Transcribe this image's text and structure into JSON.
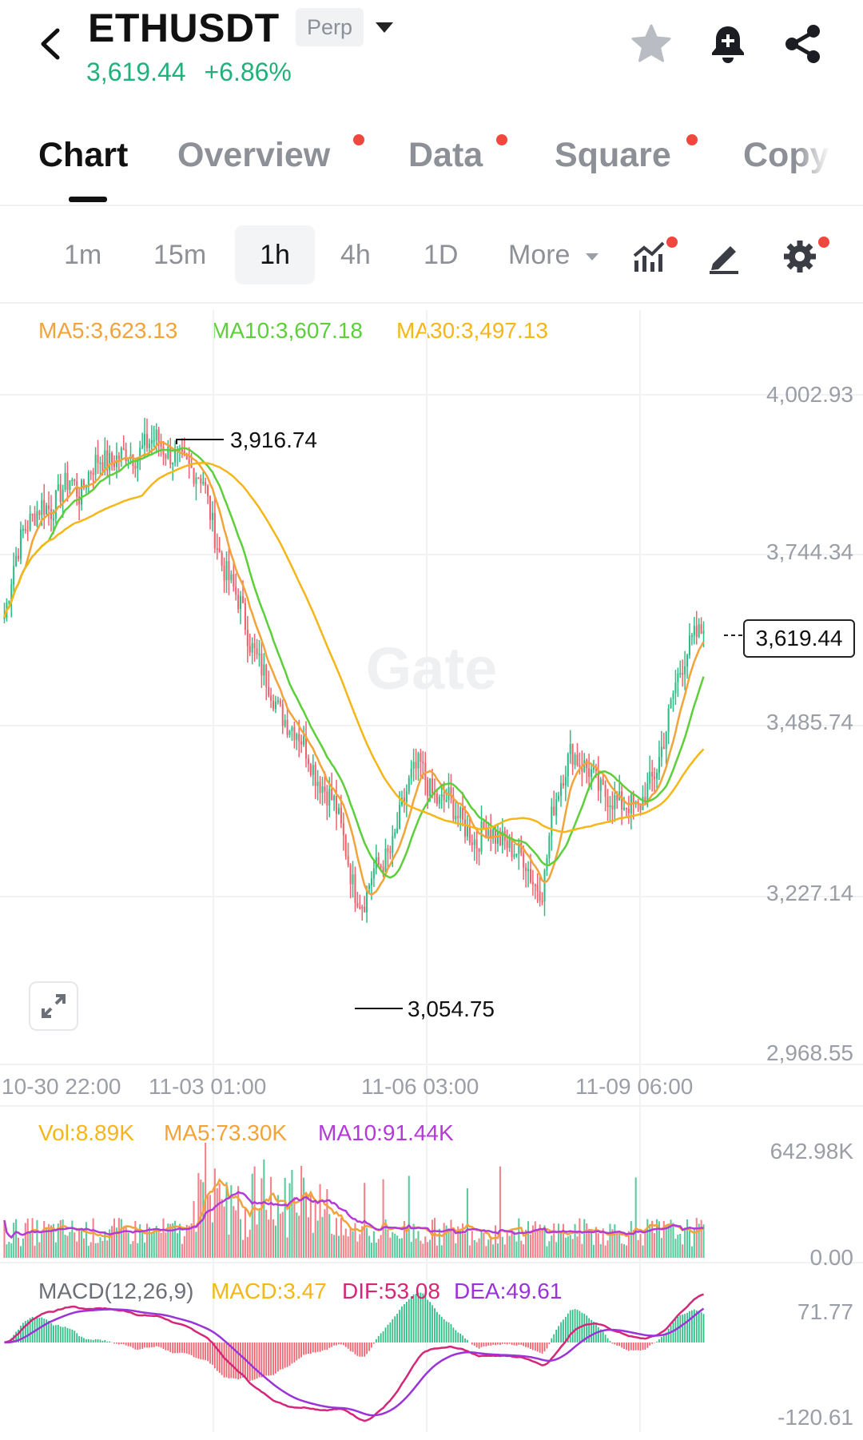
{
  "header": {
    "symbol": "ETHUSDT",
    "badge": "Perp",
    "last_price": "3,619.44",
    "change": "+6.86%",
    "icons": [
      "back-arrow-icon",
      "star-icon",
      "bell-plus-icon",
      "share-icon"
    ]
  },
  "tabs": [
    {
      "label": "Chart",
      "active": true,
      "dot": false
    },
    {
      "label": "Overview",
      "active": false,
      "dot": true
    },
    {
      "label": "Data",
      "active": false,
      "dot": true
    },
    {
      "label": "Square",
      "active": false,
      "dot": true
    },
    {
      "label": "Copy",
      "active": false,
      "dot": false
    }
  ],
  "intervals": {
    "items": [
      "1m",
      "15m",
      "1h",
      "4h",
      "1D"
    ],
    "selected": "1h",
    "more_label": "More"
  },
  "indicators": {
    "ma5": "MA5:3,623.13",
    "ma10": "MA10:3,607.18",
    "ma30": "MA30:3,497.13"
  },
  "price_axis": [
    "4,002.93",
    "3,744.34",
    "3,485.74",
    "3,227.14",
    "2,968.55"
  ],
  "time_axis": [
    "10-30 22:00",
    "11-03 01:00",
    "11-06 03:00",
    "11-09 06:00"
  ],
  "annotations": {
    "high": "3,916.74",
    "low": "3,054.75",
    "last": "3,619.44"
  },
  "watermark": "Gate",
  "volume": {
    "vol": "Vol:8.89K",
    "ma5": "MA5:73.30K",
    "ma10": "MA10:91.44K",
    "axis_top": "642.98K",
    "axis_bottom": "0.00"
  },
  "macd": {
    "name": "MACD(12,26,9)",
    "macd": "MACD:3.47",
    "dif": "DIF:53.08",
    "dea": "DEA:49.61",
    "axis_top": "71.77",
    "axis_bottom": "-120.61"
  },
  "colors": {
    "up": "#2ebd85",
    "down": "#f0616d",
    "ma5": "#f2a33a",
    "ma10": "#5ccf3a",
    "ma30": "#f5b617",
    "vol_ma10": "#b23bd8",
    "dif": "#d6267a",
    "dea": "#9a33d8",
    "price_up": "#22b07d"
  },
  "chart_data": {
    "type": "candlestick",
    "interval": "1h",
    "y_range": [
      2968.55,
      4002.93
    ],
    "closes": [
      3640,
      3720,
      3770,
      3790,
      3810,
      3800,
      3830,
      3850,
      3820,
      3860,
      3880,
      3870,
      3880,
      3890,
      3880,
      3900,
      3910,
      3890,
      3880,
      3870,
      3860,
      3850,
      3780,
      3720,
      3690,
      3660,
      3600,
      3570,
      3540,
      3500,
      3480,
      3470,
      3440,
      3400,
      3380,
      3360,
      3300,
      3230,
      3210,
      3260,
      3270,
      3290,
      3350,
      3400,
      3420,
      3380,
      3360,
      3370,
      3340,
      3320,
      3300,
      3330,
      3310,
      3300,
      3290,
      3280,
      3240,
      3230,
      3350,
      3400,
      3440,
      3420,
      3410,
      3380,
      3370,
      3360,
      3360,
      3350,
      3380,
      3410,
      3470,
      3540,
      3580,
      3610,
      3620
    ],
    "annotated_high": 3916.74,
    "annotated_low": 3054.75,
    "last": 3619.44
  }
}
